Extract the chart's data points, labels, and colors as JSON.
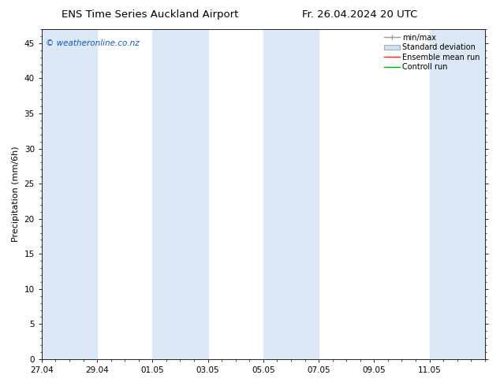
{
  "title_left": "ENS Time Series Auckland Airport",
  "title_right": "Fr. 26.04.2024 20 UTC",
  "ylabel": "Precipitation (mm/6h)",
  "watermark": "© weatheronline.co.nz",
  "x_ticks": [
    "27.04",
    "29.04",
    "01.05",
    "03.05",
    "05.05",
    "07.05",
    "09.05",
    "11.05"
  ],
  "x_tick_positions": [
    0,
    2,
    4,
    6,
    8,
    10,
    12,
    14
  ],
  "xlim": [
    0,
    16
  ],
  "ylim": [
    0,
    47
  ],
  "yticks": [
    0,
    5,
    10,
    15,
    20,
    25,
    30,
    35,
    40,
    45
  ],
  "background_color": "#ffffff",
  "shading_color": "#dce8f5",
  "shaded_regions": [
    [
      0,
      2
    ],
    [
      4,
      6
    ],
    [
      8,
      10
    ],
    [
      14,
      16
    ]
  ],
  "legend_labels": [
    "min/max",
    "Standard deviation",
    "Ensemble mean run",
    "Controll run"
  ],
  "title_fontsize": 9.5,
  "ylabel_fontsize": 8,
  "tick_fontsize": 7.5,
  "watermark_color": "#1155cc",
  "watermark_fontsize": 7.5,
  "legend_fontsize": 7
}
